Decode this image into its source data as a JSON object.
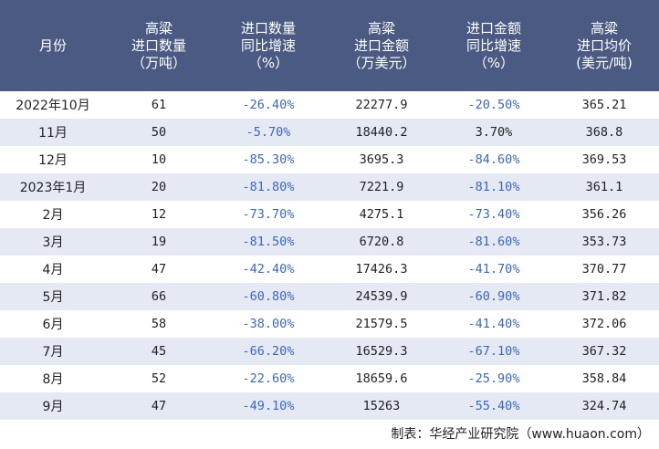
{
  "table": {
    "headers": [
      "月份",
      "高粱\n进口数量\n（万吨）",
      "进口数量\n同比增速\n（%）",
      "高粱\n进口金额\n（万美元）",
      "进口金额\n同比增速\n（%）",
      "高粱\n进口均价\n(美元/吨)"
    ],
    "rows": [
      [
        "2022年10月",
        "61",
        "-26.40%",
        "22277.9",
        "-20.50%",
        "365.21"
      ],
      [
        "11月",
        "50",
        "-5.70%",
        "18440.2",
        "3.70%",
        "368.8"
      ],
      [
        "12月",
        "10",
        "-85.30%",
        "3695.3",
        "-84.60%",
        "369.53"
      ],
      [
        "2023年1月",
        "20",
        "-81.80%",
        "7221.9",
        "-81.10%",
        "361.1"
      ],
      [
        "2月",
        "12",
        "-73.70%",
        "4275.1",
        "-73.40%",
        "356.26"
      ],
      [
        "3月",
        "19",
        "-81.50%",
        "6720.8",
        "-81.60%",
        "353.73"
      ],
      [
        "4月",
        "47",
        "-42.40%",
        "17426.3",
        "-41.70%",
        "370.77"
      ],
      [
        "5月",
        "66",
        "-60.80%",
        "24539.9",
        "-60.90%",
        "371.82"
      ],
      [
        "6月",
        "58",
        "-38.00%",
        "21579.5",
        "-41.40%",
        "372.06"
      ],
      [
        "7月",
        "45",
        "-66.20%",
        "16529.3",
        "-67.10%",
        "367.32"
      ],
      [
        "8月",
        "52",
        "-22.60%",
        "18659.6",
        "-25.90%",
        "358.84"
      ],
      [
        "9月",
        "47",
        "-49.10%",
        "15263",
        "-55.40%",
        "324.74"
      ]
    ]
  },
  "footer": {
    "source": "制表：华经产业研究院（www.huaon.com）"
  },
  "colors": {
    "header_bg": "#4a5a82",
    "header_text": "#ffffff",
    "alt_row_bg": "#e4e9f3",
    "negative_text": "#3c66c4"
  }
}
